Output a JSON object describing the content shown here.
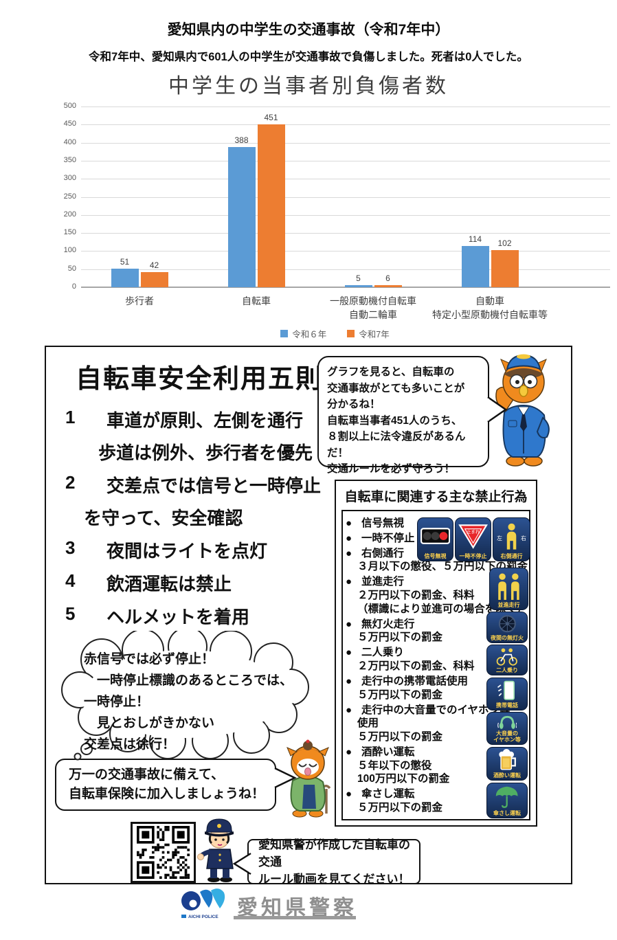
{
  "header": {
    "title": "愛知県内の中学生の交通事故（令和7年中）",
    "subtitle": "令和7年中、愛知県内で601人の中学生が交通事故で負傷しました。死者は0人でした。"
  },
  "chart_data": {
    "type": "bar",
    "title": "中学生の当事者別負傷者数",
    "categories": [
      "歩行者",
      "自転車",
      "一般原動機付自転車\n自動二輪車",
      "自動車\n特定小型原動機付自転車等"
    ],
    "series": [
      {
        "name": "令和６年",
        "color": "#5B9BD5",
        "values": [
          51,
          388,
          5,
          114
        ]
      },
      {
        "name": "令和7年",
        "color": "#ED7D31",
        "values": [
          42,
          451,
          6,
          102
        ]
      }
    ],
    "xlabel": "",
    "ylabel": "",
    "ylim": [
      0,
      500
    ],
    "ytick_step": 50,
    "grid": true,
    "legend_position": "bottom"
  },
  "five_rules": {
    "heading": "自転車安全利用五則",
    "rules": [
      {
        "num": "1",
        "text": "車道が原則、左側を通行",
        "cont": "歩道は例外、歩行者を優先"
      },
      {
        "num": "2",
        "text": "交差点では信号と一時停止",
        "cont": "を守って、安全確認"
      },
      {
        "num": "3",
        "text": "夜間はライトを点灯",
        "cont": ""
      },
      {
        "num": "4",
        "text": "飲酒運転は禁止",
        "cont": ""
      },
      {
        "num": "5",
        "text": "ヘルメットを着用",
        "cont": ""
      }
    ]
  },
  "owl_bubble": {
    "text": "グラフを見ると、自転車の\n交通事故がとても多いことが\n分かるね！\n自転車当事者451人のうち、\n８割以上に法令違反があるんだ！\n交通ルールを必ず守ろう！"
  },
  "prohibited": {
    "title": "自転車に関連する主な禁止行為",
    "bullet_char": "●",
    "lines": [
      {
        "b": 1,
        "text": "信号無視"
      },
      {
        "b": 1,
        "text": "一時不停止"
      },
      {
        "b": 1,
        "text": "右側通行"
      },
      {
        "b": 0,
        "text": "３月以下の懲役、５万円以下の罰金"
      },
      {
        "b": 1,
        "text": "並進走行"
      },
      {
        "b": 0,
        "text": "２万円以下の罰金、科料"
      },
      {
        "b": 0,
        "text": "（標識により並進可の場合を除く）"
      },
      {
        "b": 1,
        "text": "無灯火走行"
      },
      {
        "b": 0,
        "text": "５万円以下の罰金"
      },
      {
        "b": 1,
        "text": "二人乗り"
      },
      {
        "b": 0,
        "text": "２万円以下の罰金、科料"
      },
      {
        "b": 1,
        "text": "走行中の携帯電話使用"
      },
      {
        "b": 0,
        "text": "５万円以下の罰金"
      },
      {
        "b": 1,
        "text": "走行中の大音量でのイヤホン等"
      },
      {
        "b": 0,
        "text": "使用"
      },
      {
        "b": 0,
        "text": "５万円以下の罰金"
      },
      {
        "b": 1,
        "text": "酒酔い運転"
      },
      {
        "b": 0,
        "text": "５年以下の懲役"
      },
      {
        "b": 0,
        "text": "100万円以下の罰金"
      },
      {
        "b": 1,
        "text": "傘さし運転"
      },
      {
        "b": 0,
        "text": "５万円以下の罰金"
      }
    ],
    "icons": [
      {
        "glyph": "traffic-light",
        "label": "信号無視"
      },
      {
        "glyph": "stop-triangle",
        "label": "一時不停止",
        "glyph_text": "止まれ"
      },
      {
        "glyph": "right-side",
        "label": "右側通行",
        "glyph_text": "左 右"
      },
      {
        "glyph": "parallel",
        "label": "並進走行"
      },
      {
        "glyph": "no-light",
        "label": "夜間の無灯火"
      },
      {
        "glyph": "two-riders",
        "label": "二人乗り"
      },
      {
        "glyph": "phone",
        "label": "携帯電話"
      },
      {
        "glyph": "earphones",
        "label": "大音量の\nイヤホン等"
      },
      {
        "glyph": "drunk",
        "label": "酒酔い運転"
      },
      {
        "glyph": "umbrella",
        "label": "傘さし運転"
      }
    ]
  },
  "cloud_bubble": {
    "text": "赤信号では必ず停止！\n　一時停止標識のあるところでは、\n一時停止！\n　見とおしがきかない\n交差点は徐行！"
  },
  "insurance_bubble": {
    "text": "万一の交通事故に備えて、\n自転車保険に加入しましょうね！"
  },
  "video_bubble": {
    "text": "愛知県警が作成した自転車の交通\nルール動画を見てください！"
  },
  "footer": {
    "brand": "愛知県警察",
    "logo_text": "AICHI POLICE"
  }
}
